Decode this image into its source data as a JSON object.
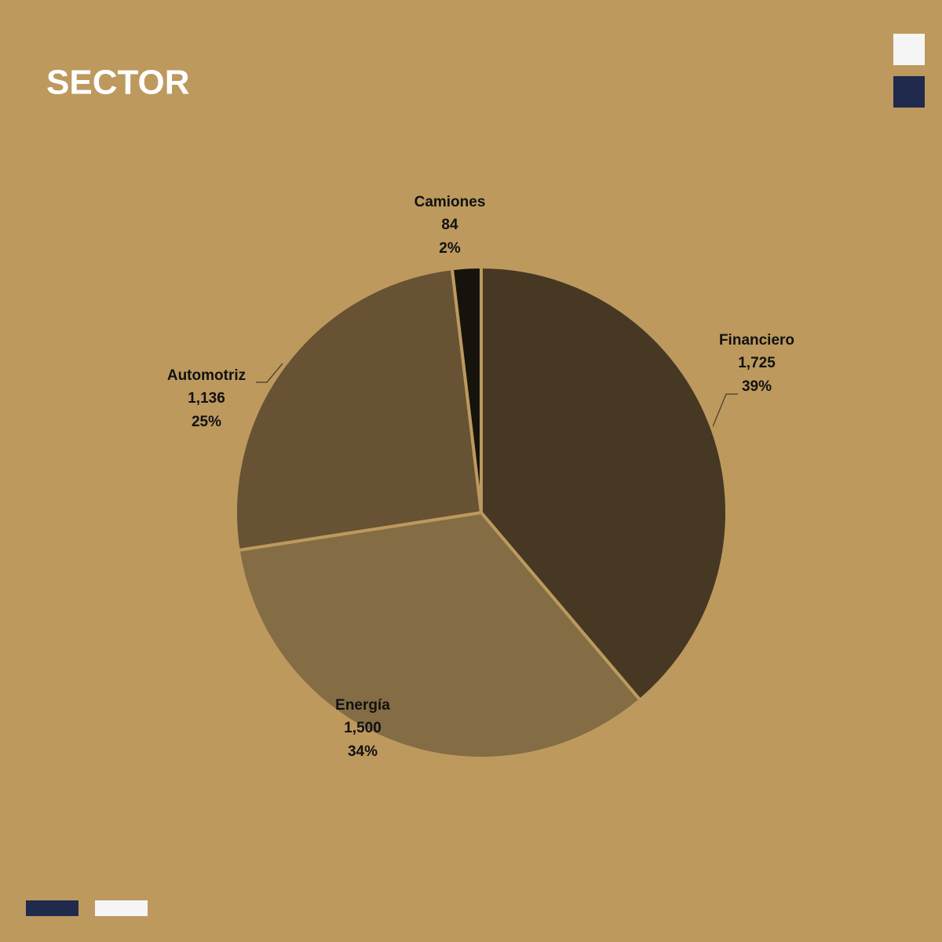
{
  "chart_data": {
    "type": "pie",
    "title": "SECTOR",
    "categories": [
      "Financiero",
      "Energía",
      "Automotriz",
      "Camiones"
    ],
    "values": [
      1725,
      1500,
      1136,
      84
    ],
    "value_labels": [
      "1,725",
      "1,500",
      "1,136",
      "84"
    ],
    "percent_labels": [
      "39%",
      "34%",
      "25%",
      "2%"
    ],
    "colors": [
      "#463823",
      "#846c44",
      "#675233",
      "#16120c"
    ]
  }
}
